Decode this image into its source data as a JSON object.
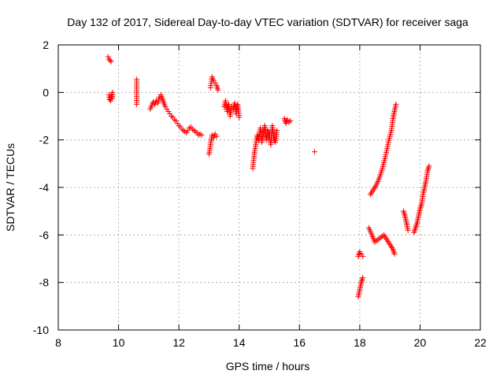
{
  "chart_data": {
    "type": "scatter",
    "title": "Day 132 of 2017, Sidereal Day-to-day VTEC variation (SDTVAR) for receiver saga",
    "xlabel": "GPS time / hours",
    "ylabel": "SDTVAR / TECUs",
    "xlim": [
      8,
      22
    ],
    "ylim": [
      -10,
      2
    ],
    "xticks": [
      8,
      10,
      12,
      14,
      16,
      18,
      20,
      22
    ],
    "yticks": [
      -10,
      -8,
      -6,
      -4,
      -2,
      0,
      2
    ],
    "grid": true,
    "marker": "+",
    "color": "#ff0000",
    "series_name": "SDTVAR",
    "segments": [
      {
        "x": [
          9.65,
          9.68,
          9.72,
          9.75
        ],
        "y": [
          1.5,
          1.4,
          1.35,
          1.3
        ]
      },
      {
        "x": [
          9.68,
          9.7,
          9.72,
          9.74,
          9.76,
          9.78,
          9.8
        ],
        "y": [
          -0.1,
          -0.3,
          -0.2,
          -0.35,
          -0.1,
          -0.25,
          0.0
        ]
      },
      {
        "x": [
          10.6,
          10.6
        ],
        "y": [
          0.55,
          -0.5
        ]
      },
      {
        "x": [
          11.05,
          11.1,
          11.15,
          11.2,
          11.25,
          11.3,
          11.35,
          11.4,
          11.45,
          11.5,
          11.55,
          11.6,
          11.65,
          11.7,
          11.75,
          11.8,
          11.85,
          11.9,
          11.95,
          12.0,
          12.05,
          12.1,
          12.15,
          12.2,
          12.25,
          12.3,
          12.35,
          12.4,
          12.45,
          12.5,
          12.55,
          12.6,
          12.65,
          12.7,
          12.75
        ],
        "y": [
          -0.7,
          -0.55,
          -0.4,
          -0.5,
          -0.35,
          -0.45,
          -0.2,
          -0.1,
          -0.25,
          -0.45,
          -0.6,
          -0.7,
          -0.8,
          -0.9,
          -1.0,
          -1.05,
          -1.15,
          -1.2,
          -1.3,
          -1.4,
          -1.45,
          -1.55,
          -1.6,
          -1.65,
          -1.7,
          -1.6,
          -1.5,
          -1.45,
          -1.55,
          -1.6,
          -1.65,
          -1.7,
          -1.8,
          -1.75,
          -1.8
        ]
      },
      {
        "x": [
          13.0,
          13.05,
          13.1,
          13.15,
          13.2,
          13.25
        ],
        "y": [
          -2.6,
          -2.2,
          -1.8,
          -1.9,
          -1.75,
          -1.85
        ]
      },
      {
        "x": [
          13.05,
          13.1,
          13.15,
          13.2,
          13.25,
          13.3
        ],
        "y": [
          0.2,
          0.65,
          0.5,
          0.4,
          0.3,
          0.1
        ]
      },
      {
        "x": [
          13.5,
          13.55,
          13.6,
          13.65,
          13.7,
          13.75,
          13.8,
          13.85,
          13.9,
          13.95,
          14.0
        ],
        "y": [
          -0.6,
          -0.35,
          -0.8,
          -0.5,
          -1.0,
          -0.6,
          -0.7,
          -0.45,
          -0.9,
          -0.5,
          -1.05
        ]
      },
      {
        "x": [
          14.45,
          14.5,
          14.55,
          14.6,
          14.65,
          14.7,
          14.75,
          14.8,
          14.85,
          14.9,
          14.95,
          15.0,
          15.05,
          15.1,
          15.15,
          15.2,
          15.25
        ],
        "y": [
          -3.2,
          -2.6,
          -2.2,
          -1.8,
          -2.0,
          -1.5,
          -2.1,
          -1.7,
          -1.4,
          -2.0,
          -1.6,
          -1.8,
          -2.2,
          -1.4,
          -1.9,
          -2.1,
          -1.6
        ]
      },
      {
        "x": [
          15.5,
          15.55,
          15.6,
          15.65,
          15.7
        ],
        "y": [
          -1.1,
          -1.3,
          -1.15,
          -1.25,
          -1.2
        ]
      },
      {
        "x": [
          16.5
        ],
        "y": [
          -2.5
        ]
      },
      {
        "x": [
          17.95,
          18.0,
          18.05,
          18.1
        ],
        "y": [
          -8.6,
          -8.3,
          -8.0,
          -7.8
        ]
      },
      {
        "x": [
          17.95,
          18.0,
          18.05,
          18.1
        ],
        "y": [
          -6.9,
          -6.7,
          -6.8,
          -6.9
        ]
      },
      {
        "x": [
          18.3,
          18.4,
          18.5,
          18.6,
          18.7,
          18.8,
          18.9,
          19.0,
          19.1,
          19.15
        ],
        "y": [
          -5.7,
          -6.0,
          -6.3,
          -6.2,
          -6.1,
          -6.0,
          -6.2,
          -6.4,
          -6.6,
          -6.8
        ]
      },
      {
        "x": [
          18.35,
          18.45,
          18.55,
          18.65,
          18.75,
          18.85,
          18.95,
          19.05,
          19.1,
          19.15,
          19.2
        ],
        "y": [
          -4.3,
          -4.1,
          -3.9,
          -3.6,
          -3.2,
          -2.7,
          -2.1,
          -1.6,
          -1.1,
          -0.8,
          -0.5
        ]
      },
      {
        "x": [
          19.45,
          19.5,
          19.55,
          19.6
        ],
        "y": [
          -5.0,
          -5.2,
          -5.5,
          -5.8
        ]
      },
      {
        "x": [
          19.8,
          19.85,
          19.9,
          19.95,
          20.0,
          20.05,
          20.1,
          20.15,
          20.2,
          20.25,
          20.3
        ],
        "y": [
          -5.9,
          -5.7,
          -5.5,
          -5.2,
          -4.9,
          -4.7,
          -4.3,
          -4.0,
          -3.7,
          -3.3,
          -3.1
        ]
      }
    ]
  }
}
